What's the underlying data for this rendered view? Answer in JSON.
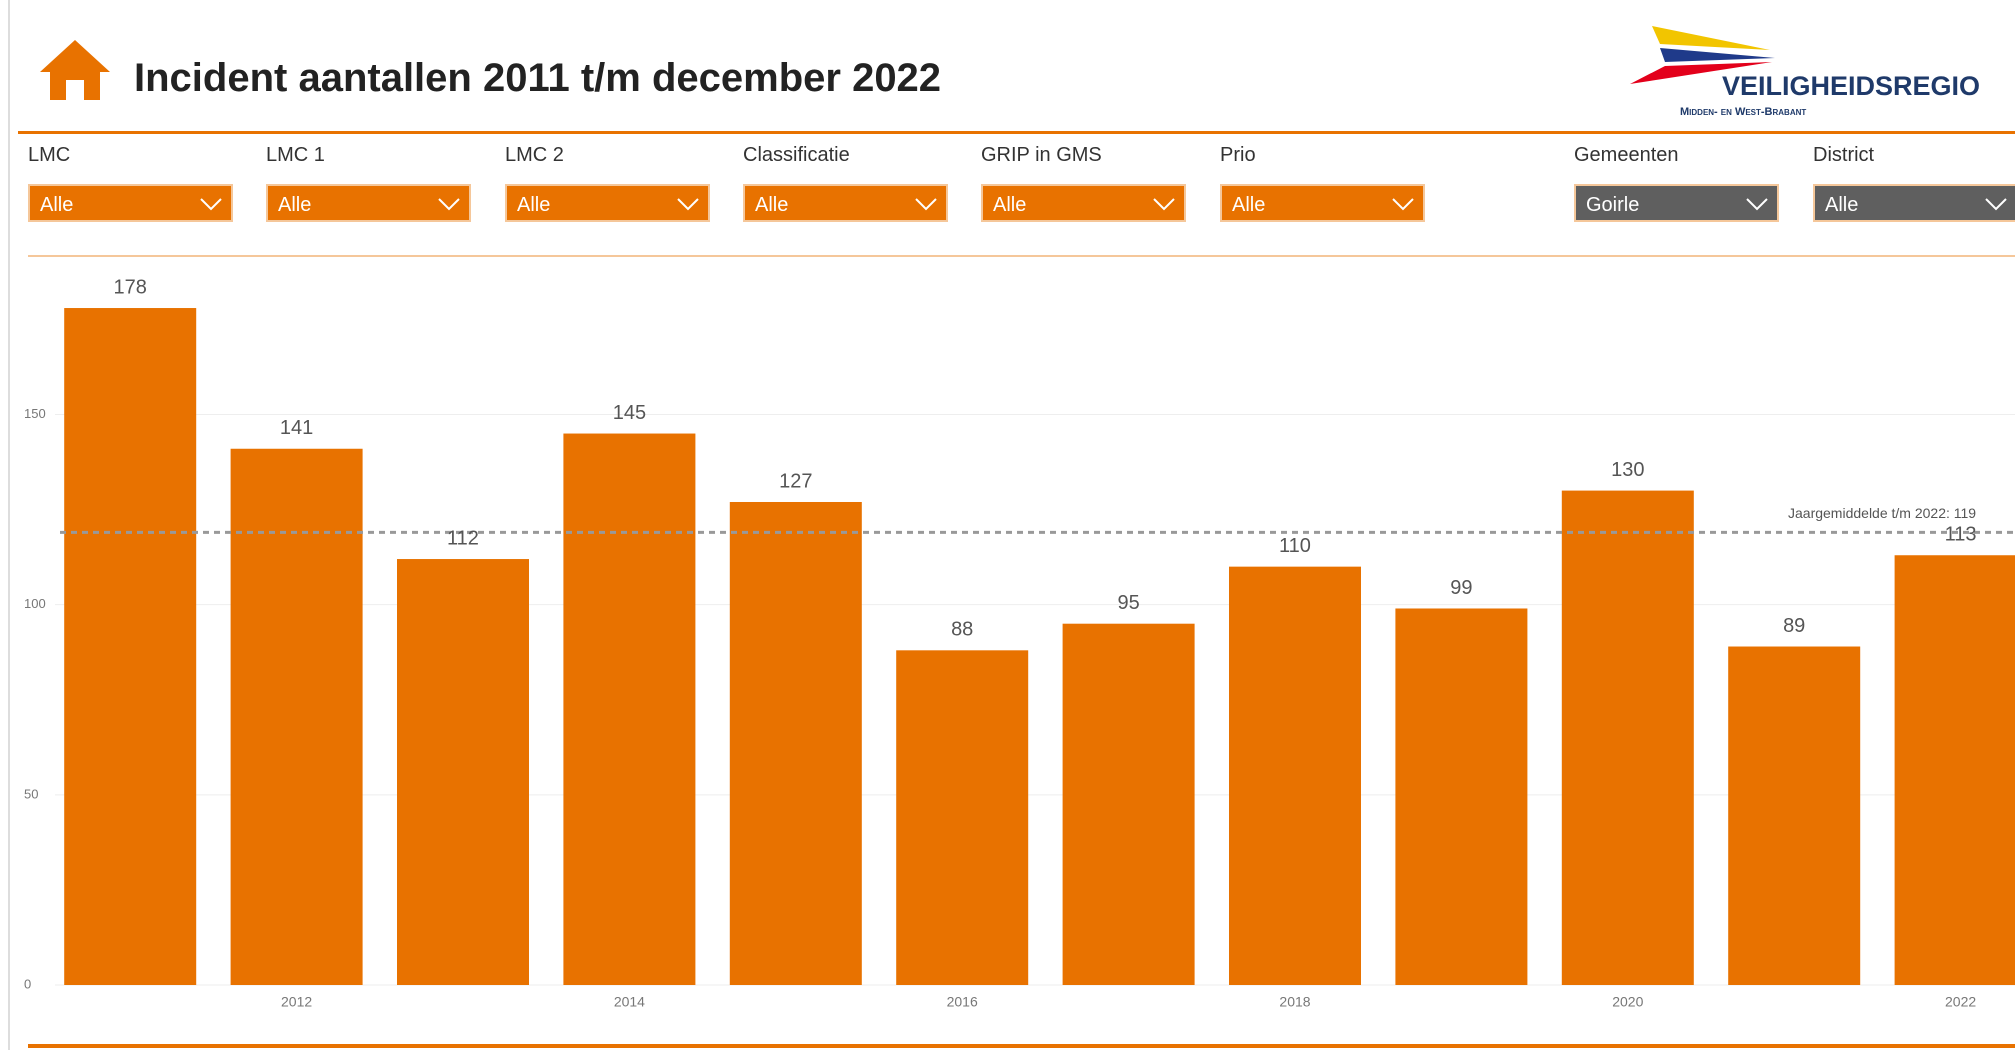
{
  "header": {
    "title": "Incident aantallen 2011 t/m december 2022",
    "logo_name": "VEILIGHEIDSREGIO",
    "logo_sub": "Midden- en West-Brabant"
  },
  "filters": [
    {
      "label": "LMC",
      "value": "Alle",
      "color": "#e87200"
    },
    {
      "label": "LMC 1",
      "value": "Alle",
      "color": "#e87200"
    },
    {
      "label": "LMC 2",
      "value": "Alle",
      "color": "#e87200"
    },
    {
      "label": "Classificatie",
      "value": "Alle",
      "color": "#e87200"
    },
    {
      "label": "GRIP in GMS",
      "value": "Alle",
      "color": "#e87200"
    },
    {
      "label": "Prio",
      "value": "Alle",
      "color": "#e87200"
    },
    {
      "label": "Gemeenten",
      "value": "Goirle",
      "color": "#5f5f5f"
    },
    {
      "label": "District",
      "value": "Alle",
      "color": "#5f5f5f"
    }
  ],
  "chart_data": {
    "type": "bar",
    "categories": [
      null,
      "2012",
      null,
      "2014",
      null,
      "2016",
      null,
      "2018",
      null,
      "2020",
      null,
      "2022"
    ],
    "values": [
      178,
      141,
      112,
      145,
      127,
      88,
      95,
      110,
      99,
      130,
      89,
      113
    ],
    "color": "#e87200",
    "ylim": [
      0,
      188
    ],
    "yticks": [
      0,
      50,
      100,
      150
    ],
    "grid": true,
    "average": 119,
    "average_label": "Jaargemiddelde t/m 2022: 119"
  }
}
